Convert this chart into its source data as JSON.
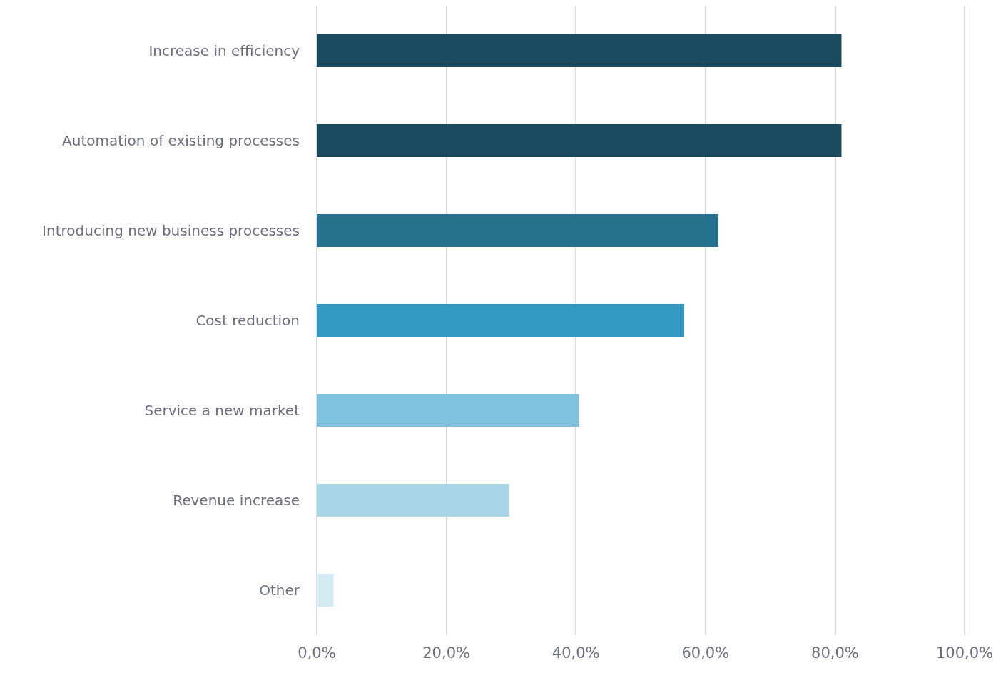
{
  "chart_data": {
    "type": "bar",
    "orientation": "horizontal",
    "categories": [
      "Increase in efficiency",
      "Automation of existing processes",
      "Introducing new business processes",
      "Cost reduction",
      "Service a new market",
      "Revenue increase",
      "Other"
    ],
    "values": [
      81,
      81,
      62,
      56.7,
      40.5,
      29.7,
      2.6
    ],
    "colors": [
      "#1b4a5e",
      "#1b4a5e",
      "#26728f",
      "#3398c2",
      "#80c1de",
      "#a9d7e8",
      "#d4eaf3"
    ],
    "xlim": [
      0,
      100
    ],
    "xticks": [
      {
        "value": 0,
        "label": "0,0%"
      },
      {
        "value": 20,
        "label": "20,0%"
      },
      {
        "value": 40,
        "label": "40,0%"
      },
      {
        "value": 60,
        "label": "60,0%"
      },
      {
        "value": 80,
        "label": "80,0%"
      },
      {
        "value": 100,
        "label": "100,0%"
      }
    ],
    "grid": "x"
  }
}
